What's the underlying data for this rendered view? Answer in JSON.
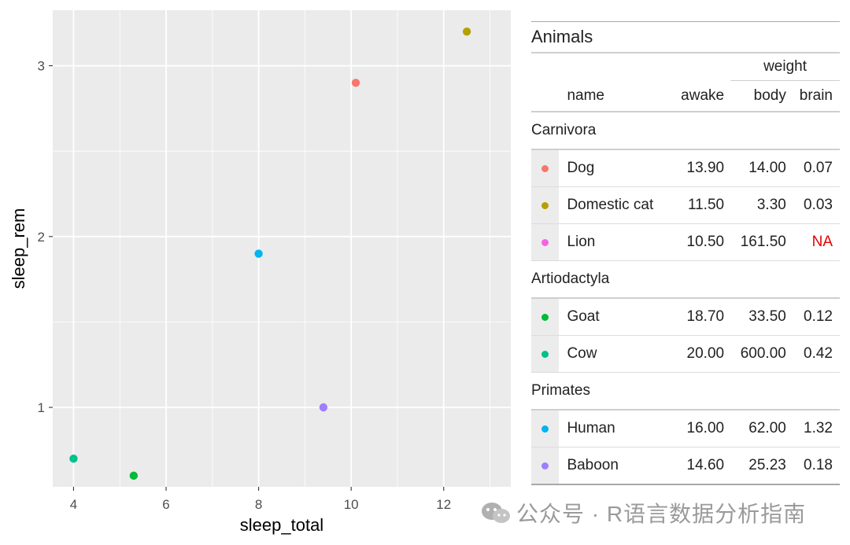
{
  "chart_data": {
    "type": "scatter",
    "xlabel": "sleep_total",
    "ylabel": "sleep_rem",
    "xlim": [
      3.55,
      13.45
    ],
    "ylim": [
      0.535,
      3.325
    ],
    "x_ticks": [
      4,
      6,
      8,
      10,
      12
    ],
    "y_ticks": [
      1,
      2,
      3
    ],
    "grid": true,
    "points": [
      {
        "name": "Dog",
        "x": 10.1,
        "y": 2.9,
        "color": "#F8766D"
      },
      {
        "name": "Domestic cat",
        "x": 12.5,
        "y": 3.2,
        "color": "#B79F00"
      },
      {
        "name": "Goat",
        "x": 5.3,
        "y": 0.6,
        "color": "#00BA38"
      },
      {
        "name": "Cow",
        "x": 4.0,
        "y": 0.7,
        "color": "#00C08B"
      },
      {
        "name": "Human",
        "x": 8.0,
        "y": 1.9,
        "color": "#00B4F0"
      },
      {
        "name": "Baboon",
        "x": 9.4,
        "y": 1.0,
        "color": "#9F7FFF"
      }
    ]
  },
  "table": {
    "title": "Animals",
    "spanner": "weight",
    "columns": {
      "name": "name",
      "awake": "awake",
      "body": "body",
      "brain": "brain"
    },
    "groups": [
      {
        "label": "Carnivora",
        "rows": [
          {
            "color": "#F8766D",
            "name": "Dog",
            "awake": "13.90",
            "body": "14.00",
            "brain": "0.07"
          },
          {
            "color": "#B79F00",
            "name": "Domestic cat",
            "awake": "11.50",
            "body": "3.30",
            "brain": "0.03"
          },
          {
            "color": "#F564E3",
            "name": "Lion",
            "awake": "10.50",
            "body": "161.50",
            "brain": "NA"
          }
        ]
      },
      {
        "label": "Artiodactyla",
        "rows": [
          {
            "color": "#00BA38",
            "name": "Goat",
            "awake": "18.70",
            "body": "33.50",
            "brain": "0.12"
          },
          {
            "color": "#00C08B",
            "name": "Cow",
            "awake": "20.00",
            "body": "600.00",
            "brain": "0.42"
          }
        ]
      },
      {
        "label": "Primates",
        "rows": [
          {
            "color": "#00B4F0",
            "name": "Human",
            "awake": "16.00",
            "body": "62.00",
            "brain": "1.32"
          },
          {
            "color": "#9F7FFF",
            "name": "Baboon",
            "awake": "14.60",
            "body": "25.23",
            "brain": "0.18"
          }
        ]
      }
    ]
  },
  "watermark": {
    "text": "公众号 · R语言数据分析指南",
    "icon": "wechat-icon"
  }
}
